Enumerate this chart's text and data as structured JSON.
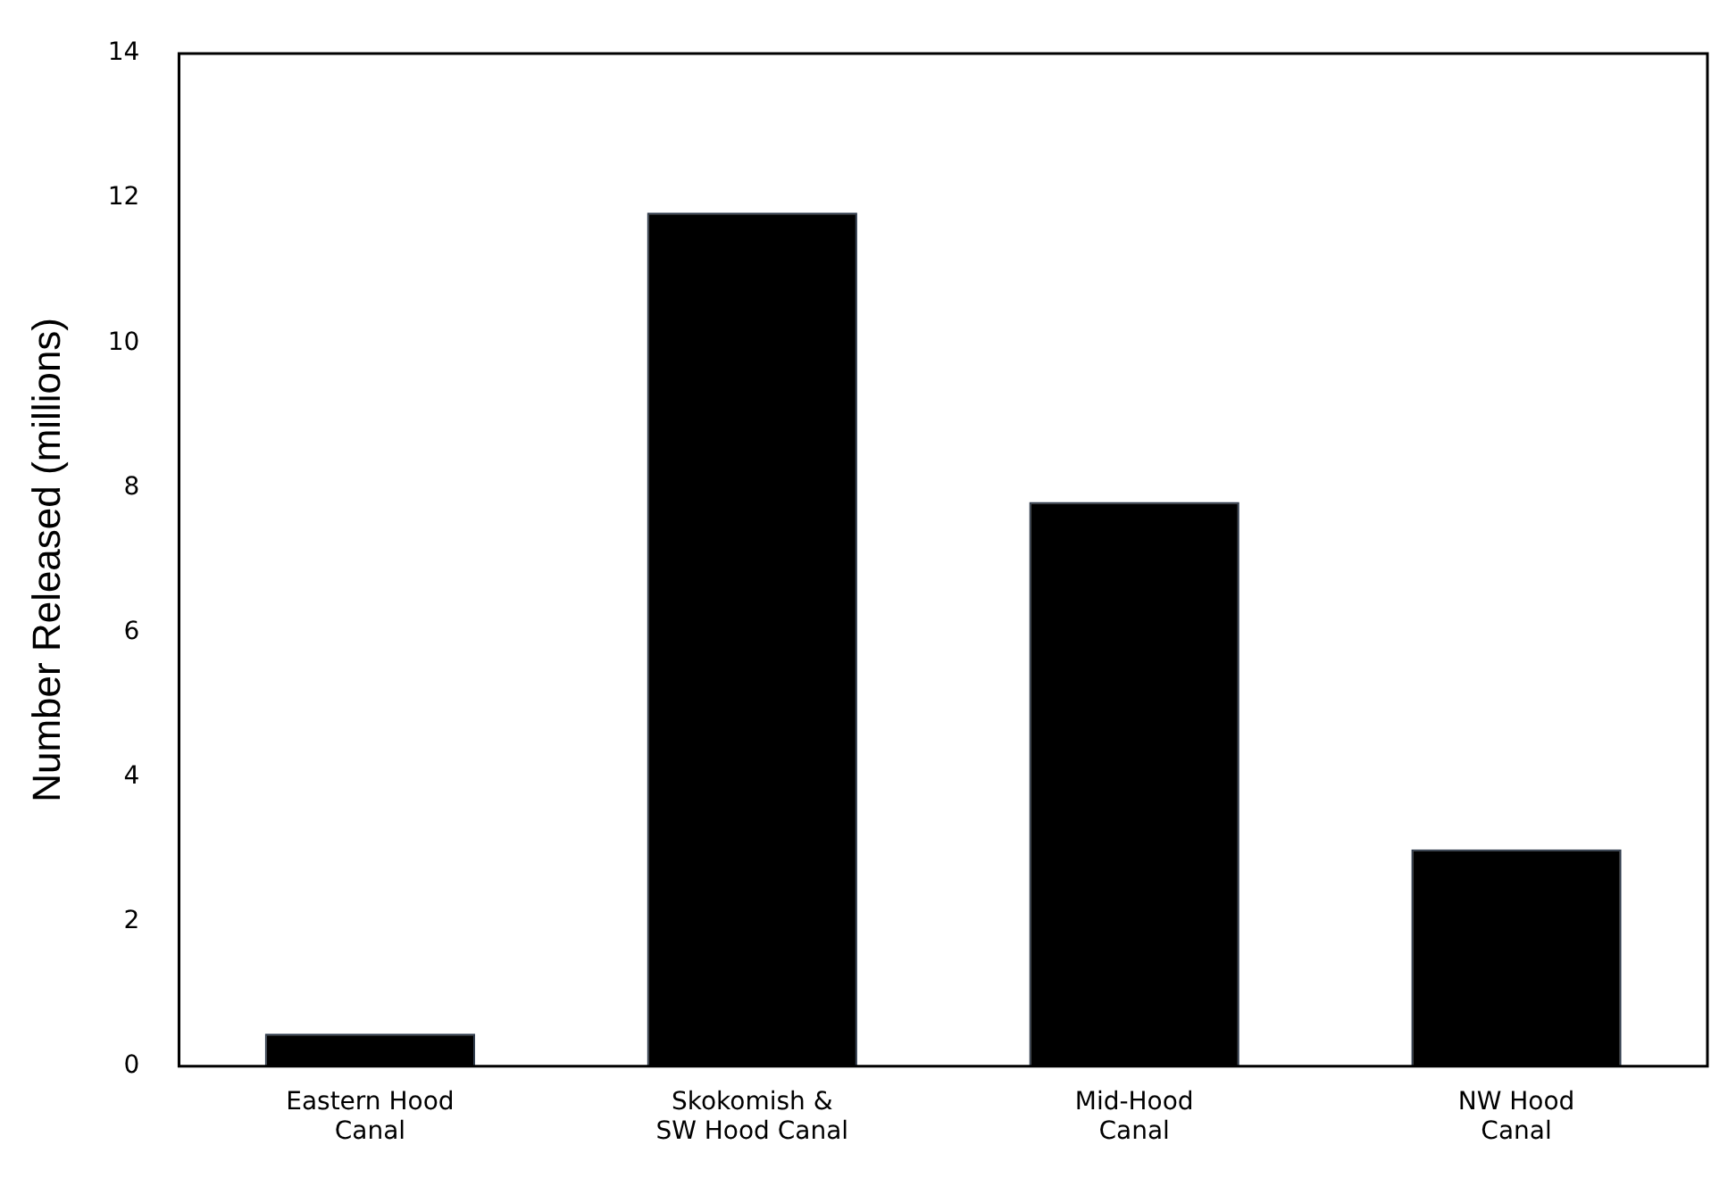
{
  "chart_data": {
    "type": "bar",
    "ylabel": "Number Released (millions)",
    "categories": [
      "Eastern Hood\nCanal",
      "Skokomish &\nSW Hood Canal",
      "Mid-Hood\nCanal",
      "NW Hood\nCanal"
    ],
    "values": [
      0.45,
      11.8,
      7.8,
      3.0
    ],
    "color": "#000000",
    "ylim": [
      0,
      14
    ],
    "yticks": [
      0,
      2,
      4,
      6,
      8,
      10,
      12,
      14
    ],
    "grid": false,
    "legend": false
  }
}
